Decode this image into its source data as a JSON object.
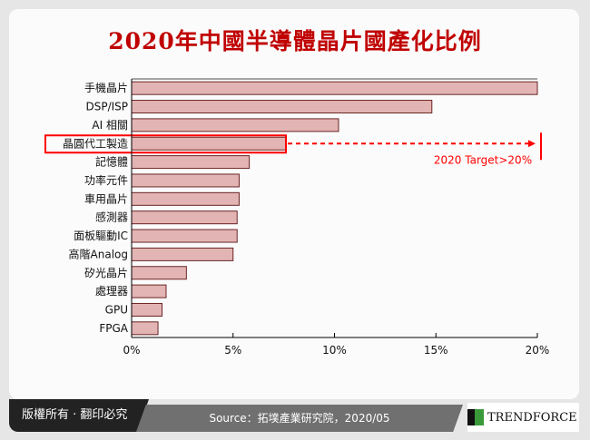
{
  "title": "2020年中國半導體晶片國產化比例",
  "chart_data": {
    "type": "bar",
    "orientation": "horizontal",
    "categories": [
      "手機晶片",
      "DSP/ISP",
      "AI 相關",
      "晶圓代工製造",
      "記憶體",
      "功率元件",
      "車用晶片",
      "感測器",
      "面板驅動IC",
      "高階Analog",
      "矽光晶片",
      "處理器",
      "GPU",
      "FPGA"
    ],
    "values": [
      20.0,
      14.8,
      10.2,
      7.6,
      5.8,
      5.3,
      5.3,
      5.2,
      5.2,
      5.0,
      2.7,
      1.7,
      1.5,
      1.3
    ],
    "xlim": [
      0,
      20
    ],
    "ticks": [
      "0%",
      "5%",
      "10%",
      "15%",
      "20%"
    ],
    "tick_values": [
      0,
      5,
      10,
      15,
      20
    ],
    "highlight_category": "晶圓代工製造",
    "annotation": "2020 Target>20%",
    "annotation_target": 20,
    "colors": {
      "bar_fill": "#e3b4b4",
      "bar_stroke": "#6b2525",
      "highlight": "#ff0000",
      "title": "#c00000"
    },
    "grid": false
  },
  "footer": {
    "copyright": "版權所有 · 翻印必究",
    "source": "Source：拓墣產業研究院，2020/05",
    "logo": "TRENDFORCE"
  }
}
